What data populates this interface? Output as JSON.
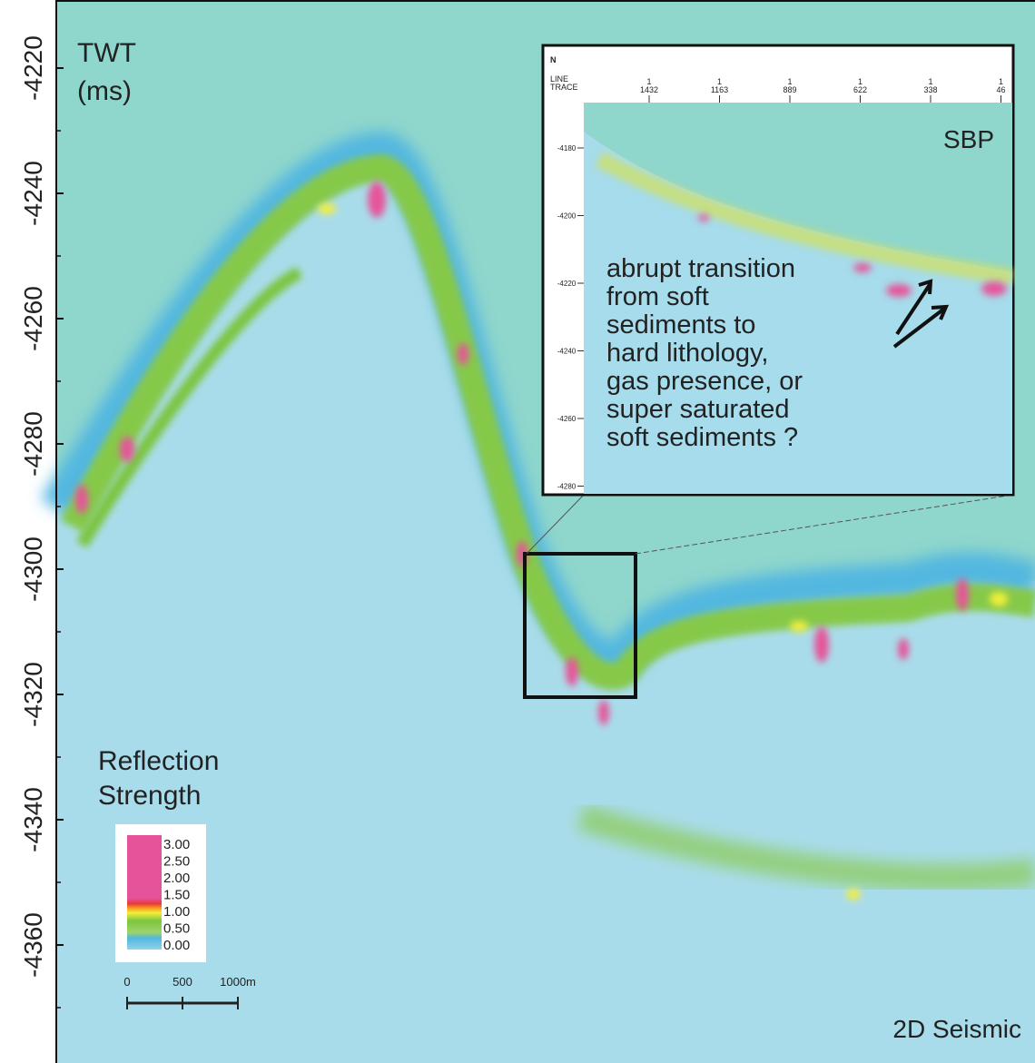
{
  "axis": {
    "title": [
      "TWT",
      "(ms)"
    ],
    "ticks": [
      "-4220",
      "-4240",
      "-4260",
      "-4280",
      "-4300",
      "-4320",
      "-4340",
      "-4360"
    ]
  },
  "seismic_label": "2D Seismic",
  "legend": {
    "title": [
      "Reflection",
      "Strength"
    ],
    "labels": [
      "3.00",
      "2.50",
      "2.00",
      "1.50",
      "1.00",
      "0.50",
      "0.00"
    ]
  },
  "scale_bar": {
    "labels": [
      "0",
      "500",
      "1000m"
    ]
  },
  "inset": {
    "north": "N",
    "header": [
      "LINE",
      "TRACE"
    ],
    "line_labels": [
      "1",
      "1",
      "1",
      "1",
      "1",
      "1"
    ],
    "traces": [
      "1432",
      "1163",
      "889",
      "622",
      "338",
      "46"
    ],
    "yticks": [
      "-4180",
      "-4200",
      "-4220",
      "-4240",
      "-4260",
      "-4280"
    ],
    "label": "SBP",
    "annotation": [
      "abrupt transition",
      "from soft",
      "sediments to",
      "hard lithology,",
      "gas presence, or",
      "super saturated",
      "soft sediments ?"
    ]
  }
}
